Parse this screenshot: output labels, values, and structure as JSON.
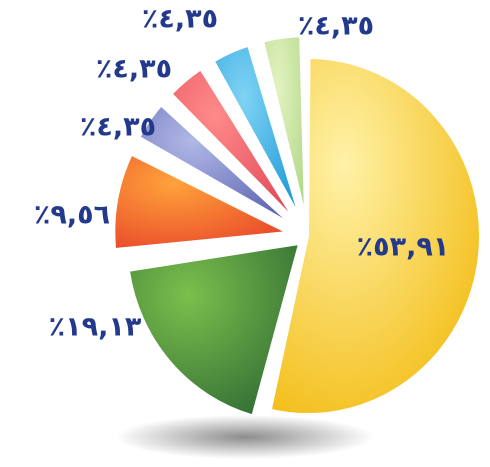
{
  "chart_data": {
    "type": "pie",
    "title": "",
    "slices": [
      {
        "label": "٪٥٣,٩١",
        "value": 53.91,
        "color_light": "#fff2a8",
        "color_dark": "#f2b90c"
      },
      {
        "label": "٪١٩,١٣",
        "value": 19.13,
        "color_light": "#7bbf4c",
        "color_dark": "#2f6a34"
      },
      {
        "label": "٪٩,٥٦",
        "value": 9.56,
        "color_light": "#ffa23a",
        "color_dark": "#e8452a"
      },
      {
        "label": "٪٤,٣٥",
        "value": 4.35,
        "color_light": "#b0b8e6",
        "color_dark": "#5a62b0"
      },
      {
        "label": "٪٤,٣٥",
        "value": 4.35,
        "color_light": "#ff8a8a",
        "color_dark": "#e04a58"
      },
      {
        "label": "٪٤,٣٥",
        "value": 4.35,
        "color_light": "#7fd3f5",
        "color_dark": "#1f9ad6"
      },
      {
        "label": "٪٤,٣٥",
        "value": 4.35,
        "color_light": "#e3f2c0",
        "color_dark": "#b2d98a"
      }
    ],
    "legend": "none",
    "label_color": "#233a8c"
  }
}
